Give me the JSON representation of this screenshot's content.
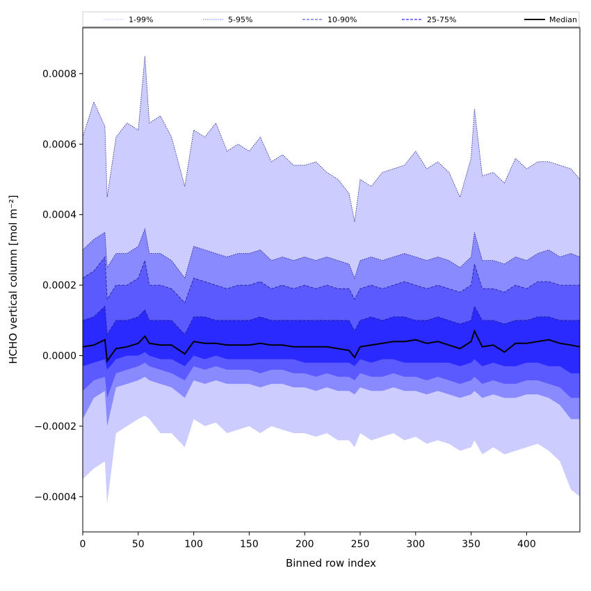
{
  "chart_data": {
    "type": "area",
    "title": "",
    "xlabel": "Binned row index",
    "ylabel": "HCHO vertical column [mol m⁻²]",
    "xlim": [
      0,
      448
    ],
    "ylim": [
      -0.0005,
      0.00093
    ],
    "xticks": [
      0,
      50,
      100,
      150,
      200,
      250,
      300,
      350,
      400
    ],
    "xtick_labels": [
      "0",
      "50",
      "100",
      "150",
      "200",
      "250",
      "300",
      "350",
      "400"
    ],
    "yticks": [
      -0.0004,
      -0.0002,
      0.0,
      0.0002,
      0.0004,
      0.0006,
      0.0008
    ],
    "ytick_labels": [
      "−0.0004",
      "−0.0002",
      "0.0000",
      "0.0002",
      "0.0004",
      "0.0006",
      "0.0008"
    ],
    "grid": false,
    "legend": {
      "placement": "top, above plot, 5 columns",
      "entries": [
        {
          "label": "1-99%",
          "color": "#ccccff",
          "style": "dotted"
        },
        {
          "label": "5-95%",
          "color": "#8a8aff",
          "style": "dotted"
        },
        {
          "label": "10-90%",
          "color": "#5a5aff",
          "style": "dashed"
        },
        {
          "label": "25-75%",
          "color": "#2a2aff",
          "style": "dashed"
        },
        {
          "label": "Median",
          "color": "#000000",
          "style": "solid"
        }
      ]
    },
    "x": [
      0,
      10,
      20,
      22,
      30,
      40,
      50,
      56,
      60,
      70,
      80,
      92,
      100,
      110,
      120,
      130,
      140,
      150,
      160,
      170,
      180,
      190,
      200,
      210,
      220,
      230,
      240,
      245,
      250,
      260,
      270,
      280,
      290,
      300,
      310,
      320,
      330,
      340,
      350,
      353,
      360,
      370,
      380,
      390,
      400,
      410,
      420,
      430,
      440,
      448
    ],
    "series": [
      {
        "name": "1-99%",
        "color": "#ccccff",
        "upper": [
          0.00062,
          0.00072,
          0.00065,
          0.00045,
          0.00062,
          0.00066,
          0.00064,
          0.00085,
          0.00066,
          0.00068,
          0.00062,
          0.00048,
          0.00064,
          0.00062,
          0.00066,
          0.00058,
          0.0006,
          0.00058,
          0.00062,
          0.00055,
          0.00057,
          0.00054,
          0.00054,
          0.00055,
          0.00052,
          0.0005,
          0.00046,
          0.00038,
          0.0005,
          0.00048,
          0.00052,
          0.00053,
          0.00054,
          0.00058,
          0.00053,
          0.00055,
          0.00052,
          0.00045,
          0.00056,
          0.0007,
          0.00051,
          0.00052,
          0.00049,
          0.00056,
          0.00053,
          0.00055,
          0.00055,
          0.00054,
          0.00053,
          0.0005
        ],
        "lower": [
          -0.00035,
          -0.00032,
          -0.0003,
          -0.00042,
          -0.00022,
          -0.0002,
          -0.00018,
          -0.00017,
          -0.00018,
          -0.00022,
          -0.00022,
          -0.00026,
          -0.00018,
          -0.0002,
          -0.00019,
          -0.00022,
          -0.00021,
          -0.0002,
          -0.00022,
          -0.0002,
          -0.00021,
          -0.00022,
          -0.00022,
          -0.00023,
          -0.00022,
          -0.00024,
          -0.00024,
          -0.00026,
          -0.00022,
          -0.00024,
          -0.00023,
          -0.00022,
          -0.00024,
          -0.00023,
          -0.00025,
          -0.00024,
          -0.00025,
          -0.00027,
          -0.00026,
          -0.00024,
          -0.00028,
          -0.00026,
          -0.00028,
          -0.00027,
          -0.00026,
          -0.00025,
          -0.00027,
          -0.0003,
          -0.00038,
          -0.0004
        ]
      },
      {
        "name": "5-95%",
        "color": "#8a8aff",
        "upper": [
          0.0003,
          0.00033,
          0.00035,
          0.00025,
          0.00029,
          0.00029,
          0.00031,
          0.00036,
          0.00029,
          0.00029,
          0.00027,
          0.00022,
          0.00031,
          0.0003,
          0.00029,
          0.00028,
          0.00029,
          0.00029,
          0.0003,
          0.00027,
          0.00028,
          0.00027,
          0.00028,
          0.00027,
          0.00028,
          0.00027,
          0.00026,
          0.00022,
          0.00027,
          0.00028,
          0.00027,
          0.00028,
          0.00029,
          0.00028,
          0.00027,
          0.00028,
          0.00027,
          0.00025,
          0.00028,
          0.00035,
          0.00027,
          0.00027,
          0.00026,
          0.00028,
          0.00027,
          0.00029,
          0.0003,
          0.00028,
          0.00029,
          0.00028
        ],
        "lower": [
          -0.00018,
          -0.00012,
          -0.0001,
          -0.0002,
          -9e-05,
          -8e-05,
          -7e-05,
          -6e-05,
          -7e-05,
          -8e-05,
          -9e-05,
          -0.00012,
          -7e-05,
          -8e-05,
          -7e-05,
          -8e-05,
          -8e-05,
          -8e-05,
          -9e-05,
          -8e-05,
          -8e-05,
          -9e-05,
          -9e-05,
          -0.0001,
          -9e-05,
          -0.0001,
          -0.0001,
          -0.00011,
          -9e-05,
          -0.0001,
          -0.0001,
          -9e-05,
          -0.0001,
          -0.0001,
          -0.00011,
          -0.0001,
          -0.00011,
          -0.00012,
          -0.00011,
          -0.0001,
          -0.00012,
          -0.00011,
          -0.00012,
          -0.00012,
          -0.00011,
          -0.00011,
          -0.00012,
          -0.00014,
          -0.00018,
          -0.00018
        ]
      },
      {
        "name": "10-90%",
        "color": "#5a5aff",
        "upper": [
          0.00022,
          0.00024,
          0.00028,
          0.00016,
          0.0002,
          0.0002,
          0.00022,
          0.00027,
          0.0002,
          0.0002,
          0.00019,
          0.00015,
          0.00022,
          0.00021,
          0.0002,
          0.00019,
          0.0002,
          0.0002,
          0.00021,
          0.00019,
          0.0002,
          0.00019,
          0.0002,
          0.00019,
          0.0002,
          0.00019,
          0.00019,
          0.00016,
          0.00019,
          0.0002,
          0.00019,
          0.0002,
          0.00021,
          0.0002,
          0.00019,
          0.0002,
          0.00019,
          0.00018,
          0.0002,
          0.00026,
          0.00019,
          0.00019,
          0.00018,
          0.0002,
          0.00019,
          0.00021,
          0.00021,
          0.0002,
          0.0002,
          0.0002
        ],
        "lower": [
          -0.0001,
          -7e-05,
          -6e-05,
          -0.00012,
          -5e-05,
          -4e-05,
          -3e-05,
          -2e-05,
          -3e-05,
          -4e-05,
          -5e-05,
          -7e-05,
          -3e-05,
          -4e-05,
          -3e-05,
          -4e-05,
          -4e-05,
          -4e-05,
          -5e-05,
          -4e-05,
          -4e-05,
          -5e-05,
          -5e-05,
          -6e-05,
          -5e-05,
          -6e-05,
          -6e-05,
          -7e-05,
          -5e-05,
          -6e-05,
          -6e-05,
          -5e-05,
          -6e-05,
          -6e-05,
          -7e-05,
          -6e-05,
          -7e-05,
          -8e-05,
          -7e-05,
          -6e-05,
          -8e-05,
          -7e-05,
          -8e-05,
          -8e-05,
          -7e-05,
          -7e-05,
          -8e-05,
          -9e-05,
          -0.00012,
          -0.00012
        ]
      },
      {
        "name": "25-75%",
        "color": "#2a2aff",
        "upper": [
          0.0001,
          0.00011,
          0.00014,
          6e-05,
          0.0001,
          0.0001,
          0.00011,
          0.00013,
          0.0001,
          0.0001,
          0.0001,
          6e-05,
          0.00011,
          0.00011,
          0.0001,
          0.0001,
          0.0001,
          0.0001,
          0.00011,
          0.0001,
          0.0001,
          0.0001,
          0.0001,
          0.0001,
          0.0001,
          0.0001,
          0.0001,
          7e-05,
          0.0001,
          0.00011,
          0.0001,
          0.00011,
          0.00011,
          0.0001,
          0.0001,
          0.00011,
          0.0001,
          9e-05,
          0.0001,
          0.00014,
          0.0001,
          0.0001,
          9e-05,
          0.0001,
          0.0001,
          0.00011,
          0.00011,
          0.0001,
          0.0001,
          0.0001
        ],
        "lower": [
          -3e-05,
          -2e-05,
          -1e-05,
          -4e-05,
          -1e-05,
          0.0,
          0.0,
          1e-05,
          0.0,
          -1e-05,
          -1e-05,
          -3e-05,
          0.0,
          -1e-05,
          0.0,
          -1e-05,
          -1e-05,
          -1e-05,
          -1e-05,
          -1e-05,
          -1e-05,
          -1e-05,
          -2e-05,
          -2e-05,
          -2e-05,
          -2e-05,
          -2e-05,
          -3e-05,
          -1e-05,
          -2e-05,
          -1e-05,
          -1e-05,
          -2e-05,
          -2e-05,
          -2e-05,
          -2e-05,
          -2e-05,
          -3e-05,
          -2e-05,
          -1e-05,
          -3e-05,
          -2e-05,
          -3e-05,
          -3e-05,
          -2e-05,
          -2e-05,
          -3e-05,
          -3e-05,
          -5e-05,
          -5e-05
        ]
      },
      {
        "name": "Median",
        "color": "#000000",
        "values": [
          2.5e-05,
          3e-05,
          4.5e-05,
          -1.5e-05,
          2e-05,
          2.5e-05,
          3.5e-05,
          5.5e-05,
          3.5e-05,
          3e-05,
          3e-05,
          5e-06,
          4e-05,
          3.5e-05,
          3.5e-05,
          3e-05,
          3e-05,
          3e-05,
          3.5e-05,
          3e-05,
          3e-05,
          2.5e-05,
          2.5e-05,
          2.5e-05,
          2.5e-05,
          2e-05,
          1.5e-05,
          -5e-06,
          2.5e-05,
          3e-05,
          3.5e-05,
          4e-05,
          4e-05,
          4.5e-05,
          3.5e-05,
          4e-05,
          3e-05,
          2e-05,
          4e-05,
          7e-05,
          2.5e-05,
          3e-05,
          1e-05,
          3.5e-05,
          3.5e-05,
          4e-05,
          4.5e-05,
          3.5e-05,
          3e-05,
          2.5e-05
        ]
      }
    ]
  }
}
